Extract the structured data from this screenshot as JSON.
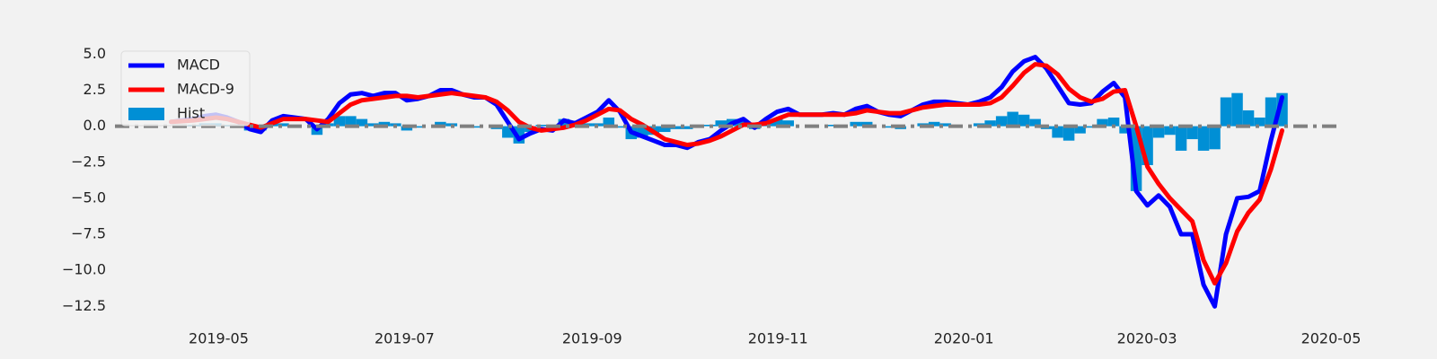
{
  "chart_data": {
    "type": "line",
    "xlim": [
      -5,
      104
    ],
    "xticks": [
      {
        "value": 4.24,
        "label": "2019-05"
      },
      {
        "value": 20.8,
        "label": "2019-07"
      },
      {
        "value": 37.52,
        "label": "2019-09"
      },
      {
        "value": 54.08,
        "label": "2019-11"
      },
      {
        "value": 70.64,
        "label": "2020-01"
      },
      {
        "value": 86.96,
        "label": "2020-03"
      },
      {
        "value": 103.36,
        "label": "2020-05"
      }
    ],
    "ylim": [
      -13.6,
      7.2
    ],
    "yticks": [
      {
        "value": 5,
        "label": "5.0"
      },
      {
        "value": 2.5,
        "label": "2.5"
      },
      {
        "value": 0,
        "label": "0.0"
      },
      {
        "value": -2.5,
        "label": "−2.5"
      },
      {
        "value": -5,
        "label": "−5.0"
      },
      {
        "value": -7.5,
        "label": "−7.5"
      },
      {
        "value": -10,
        "label": "−10.0"
      },
      {
        "value": -12.5,
        "label": "−12.5"
      }
    ],
    "grid": false,
    "hline": 0,
    "legend": "upper left",
    "series": [
      {
        "name": "MACD",
        "color": "#0000ff",
        "type": "line",
        "values": [
          0.3,
          0.4,
          0.5,
          0.7,
          0.8,
          0.6,
          0.3,
          -0.2,
          -0.4,
          0.4,
          0.7,
          0.6,
          0.5,
          -0.2,
          0.5,
          1.6,
          2.2,
          2.3,
          2.1,
          2.3,
          2.3,
          1.8,
          1.9,
          2.1,
          2.5,
          2.5,
          2.2,
          2.0,
          2.0,
          1.5,
          0.3,
          -0.9,
          -0.5,
          -0.2,
          -0.3,
          0.4,
          0.2,
          0.6,
          1.0,
          1.8,
          1.0,
          -0.4,
          -0.7,
          -1.0,
          -1.3,
          -1.3,
          -1.5,
          -1.1,
          -0.9,
          -0.3,
          0.2,
          0.5,
          -0.1,
          0.5,
          1.0,
          1.2,
          0.8,
          0.8,
          0.8,
          0.9,
          0.8,
          1.2,
          1.4,
          1.0,
          0.8,
          0.7,
          1.1,
          1.5,
          1.7,
          1.7,
          1.6,
          1.5,
          1.7,
          2.0,
          2.7,
          3.8,
          4.5,
          4.8,
          4.0,
          2.8,
          1.6,
          1.5,
          1.6,
          2.4,
          3.0,
          2.0,
          -4.5,
          -5.5,
          -4.8,
          -5.6,
          -7.5,
          -7.5,
          -11.0,
          -12.5,
          -7.5,
          -5.0,
          -4.9,
          -4.5,
          -1.0,
          2.0
        ]
      },
      {
        "name": "MACD-9",
        "color": "#ff0000",
        "type": "line",
        "values": [
          0.3,
          0.35,
          0.4,
          0.5,
          0.6,
          0.5,
          0.3,
          0.1,
          -0.1,
          0.2,
          0.5,
          0.5,
          0.5,
          0.4,
          0.3,
          0.9,
          1.5,
          1.8,
          1.9,
          2.0,
          2.1,
          2.1,
          2.0,
          2.1,
          2.2,
          2.3,
          2.2,
          2.1,
          2.0,
          1.7,
          1.1,
          0.3,
          -0.1,
          -0.3,
          -0.2,
          -0.1,
          0.1,
          0.4,
          0.8,
          1.2,
          1.1,
          0.5,
          0.1,
          -0.4,
          -0.9,
          -1.1,
          -1.3,
          -1.2,
          -1.0,
          -0.7,
          -0.3,
          0.1,
          0.1,
          0.2,
          0.5,
          0.8,
          0.8,
          0.8,
          0.8,
          0.8,
          0.8,
          0.9,
          1.1,
          1.0,
          0.9,
          0.9,
          1.1,
          1.3,
          1.4,
          1.5,
          1.5,
          1.5,
          1.5,
          1.6,
          2.0,
          2.8,
          3.7,
          4.3,
          4.2,
          3.6,
          2.6,
          2.0,
          1.7,
          1.9,
          2.4,
          2.5,
          0.0,
          -2.8,
          -4.0,
          -5.0,
          -5.8,
          -6.6,
          -9.3,
          -10.9,
          -9.5,
          -7.3,
          -6.0,
          -5.1,
          -3.0,
          -0.3
        ]
      },
      {
        "name": "Hist",
        "color": "#008fd5",
        "type": "bar",
        "values": [
          0.0,
          0.05,
          0.1,
          0.2,
          0.2,
          0.1,
          0.0,
          -0.3,
          -0.3,
          0.2,
          0.2,
          0.1,
          0.0,
          -0.6,
          0.2,
          0.7,
          0.7,
          0.5,
          0.2,
          0.3,
          0.2,
          -0.3,
          -0.1,
          0.0,
          0.3,
          0.2,
          0.0,
          -0.1,
          0.0,
          -0.2,
          -0.8,
          -1.2,
          -0.4,
          0.1,
          -0.1,
          0.5,
          0.1,
          0.2,
          0.2,
          0.6,
          -0.1,
          -0.9,
          -0.8,
          -0.6,
          -0.4,
          -0.2,
          -0.2,
          0.1,
          0.1,
          0.4,
          0.5,
          0.4,
          -0.2,
          0.3,
          0.5,
          0.4,
          0.0,
          0.0,
          0.0,
          0.1,
          0.0,
          0.3,
          0.3,
          0.0,
          -0.1,
          -0.2,
          0.0,
          0.2,
          0.3,
          0.2,
          0.1,
          0.0,
          0.2,
          0.4,
          0.7,
          1.0,
          0.8,
          0.5,
          -0.2,
          -0.8,
          -1.0,
          -0.5,
          -0.1,
          0.5,
          0.6,
          -0.5,
          -4.5,
          -2.7,
          -0.8,
          -0.6,
          -1.7,
          -0.9,
          -1.7,
          -1.6,
          2.0,
          2.3,
          1.1,
          0.6,
          2.0,
          2.3
        ]
      }
    ]
  }
}
